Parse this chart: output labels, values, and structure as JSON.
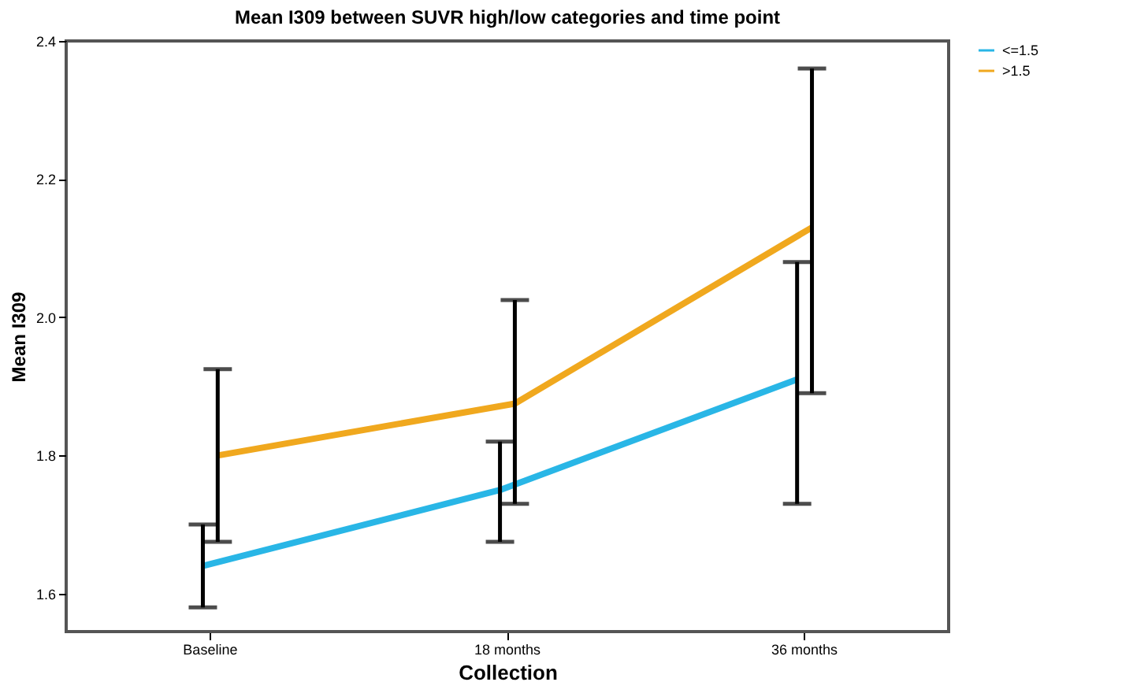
{
  "chart_data": {
    "type": "line",
    "title": "Mean I309 between SUVR high/low categories and time point",
    "xlabel": "Collection",
    "ylabel": "Mean I309",
    "categories": [
      "Baseline",
      "18 months",
      "36 months"
    ],
    "series": [
      {
        "name": "<=1.5",
        "color": "#29b6e6",
        "values": [
          1.64,
          1.75,
          1.91
        ],
        "errors": [
          [
            1.58,
            1.7
          ],
          [
            1.675,
            1.82
          ],
          [
            1.73,
            2.08
          ]
        ]
      },
      {
        "name": ">1.5",
        "color": "#f0a81e",
        "values": [
          1.8,
          1.875,
          2.13
        ],
        "errors": [
          [
            1.675,
            1.925
          ],
          [
            1.73,
            2.025
          ],
          [
            1.89,
            2.36
          ]
        ]
      }
    ],
    "ylim": [
      1.545,
      2.4
    ],
    "yticks": [
      1.6,
      1.8,
      {
        "value": 2.0,
        "label": "2.0"
      },
      2.2,
      2.4
    ],
    "grid": false,
    "legend": "right",
    "marker": "none",
    "line_style": "solid"
  }
}
